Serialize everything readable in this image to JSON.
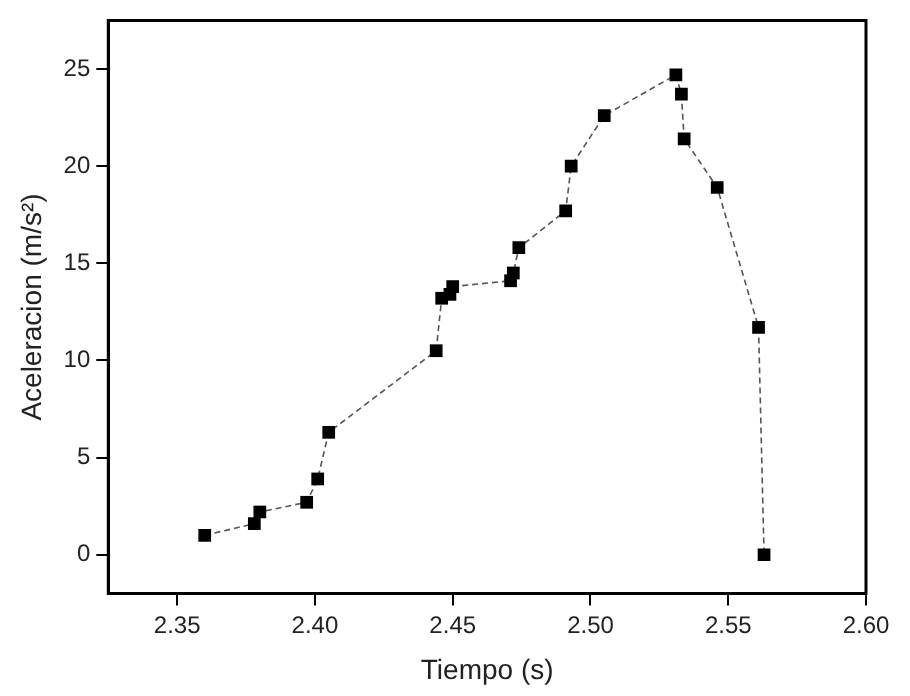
{
  "chart_data": {
    "type": "line",
    "xlabel": "Tiempo (s)",
    "ylabel": "Aceleracion (m/s²)",
    "x": [
      2.36,
      2.378,
      2.38,
      2.397,
      2.401,
      2.405,
      2.444,
      2.446,
      2.449,
      2.45,
      2.471,
      2.472,
      2.474,
      2.491,
      2.493,
      2.505,
      2.531,
      2.533,
      2.534,
      2.546,
      2.561,
      2.563
    ],
    "series": [
      {
        "color": "#000000",
        "values": [
          1.0,
          1.6,
          2.2,
          2.7,
          3.9,
          6.3,
          10.5,
          13.2,
          13.4,
          13.8,
          14.1,
          14.5,
          15.8,
          17.7,
          20.0,
          22.6,
          24.7,
          23.7,
          21.4,
          18.9,
          11.7,
          0.0
        ]
      }
    ],
    "xlim": [
      2.325,
      2.6
    ],
    "ylim": [
      -2,
      27.5
    ],
    "xticks": [
      2.35,
      {
        "value": 2.4,
        "label": "2.40"
      },
      2.45,
      {
        "value": 2.5,
        "label": "2.50"
      },
      2.55,
      {
        "value": 2.6,
        "label": "2.60"
      }
    ],
    "yticks": [
      0,
      5,
      10,
      15,
      20,
      25
    ],
    "grid": false,
    "legend": false,
    "marker": "square",
    "line_style": "dashed"
  }
}
